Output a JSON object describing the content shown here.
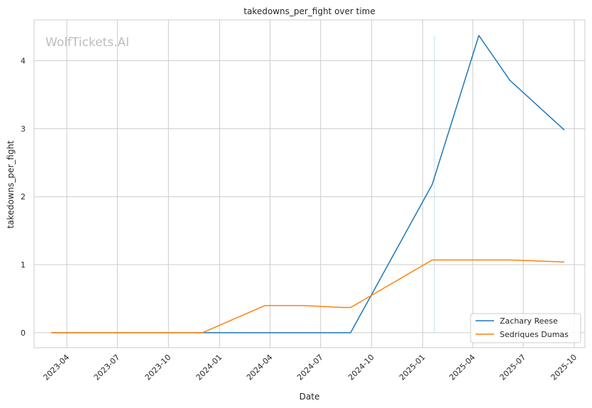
{
  "chart_data": {
    "type": "line",
    "title": "takedowns_per_fight over time",
    "xlabel": "Date",
    "ylabel": "takedowns_per_fight",
    "watermark": "WolfTickets.AI",
    "grid": true,
    "legend_position": "bottom-right",
    "x_ticks": [
      "2023-04",
      "2023-07",
      "2023-10",
      "2024-01",
      "2024-04",
      "2024-07",
      "2024-10",
      "2025-01",
      "2025-04",
      "2025-07",
      "2025-10"
    ],
    "y_ticks": [
      0,
      1,
      2,
      3,
      4
    ],
    "xlim": [
      "2023-02-01",
      "2025-10-20"
    ],
    "ylim": [
      -0.22,
      4.6
    ],
    "vertical_marker": {
      "date": "2025-01-22",
      "ymin": 0,
      "ymax": 4.37,
      "color": "#cfe0ee"
    },
    "series": [
      {
        "name": "Zachary Reese",
        "color": "#1f77b4",
        "points": [
          [
            "2023-03-04",
            0
          ],
          [
            "2023-12-01",
            0
          ],
          [
            "2024-03-23",
            0
          ],
          [
            "2024-06-01",
            0
          ],
          [
            "2024-08-24",
            0
          ],
          [
            "2025-01-18",
            2.18
          ],
          [
            "2025-04-12",
            4.37
          ],
          [
            "2025-06-07",
            3.71
          ],
          [
            "2025-09-13",
            2.98
          ]
        ]
      },
      {
        "name": "Sedriques Dumas",
        "color": "#ff7f0e",
        "points": [
          [
            "2023-03-04",
            0
          ],
          [
            "2023-12-01",
            0
          ],
          [
            "2024-03-23",
            0.4
          ],
          [
            "2024-06-01",
            0.4
          ],
          [
            "2024-08-10",
            0.37
          ],
          [
            "2024-08-24",
            0.37
          ],
          [
            "2025-01-18",
            1.07
          ],
          [
            "2025-06-07",
            1.07
          ],
          [
            "2025-09-13",
            1.04
          ]
        ]
      }
    ]
  }
}
